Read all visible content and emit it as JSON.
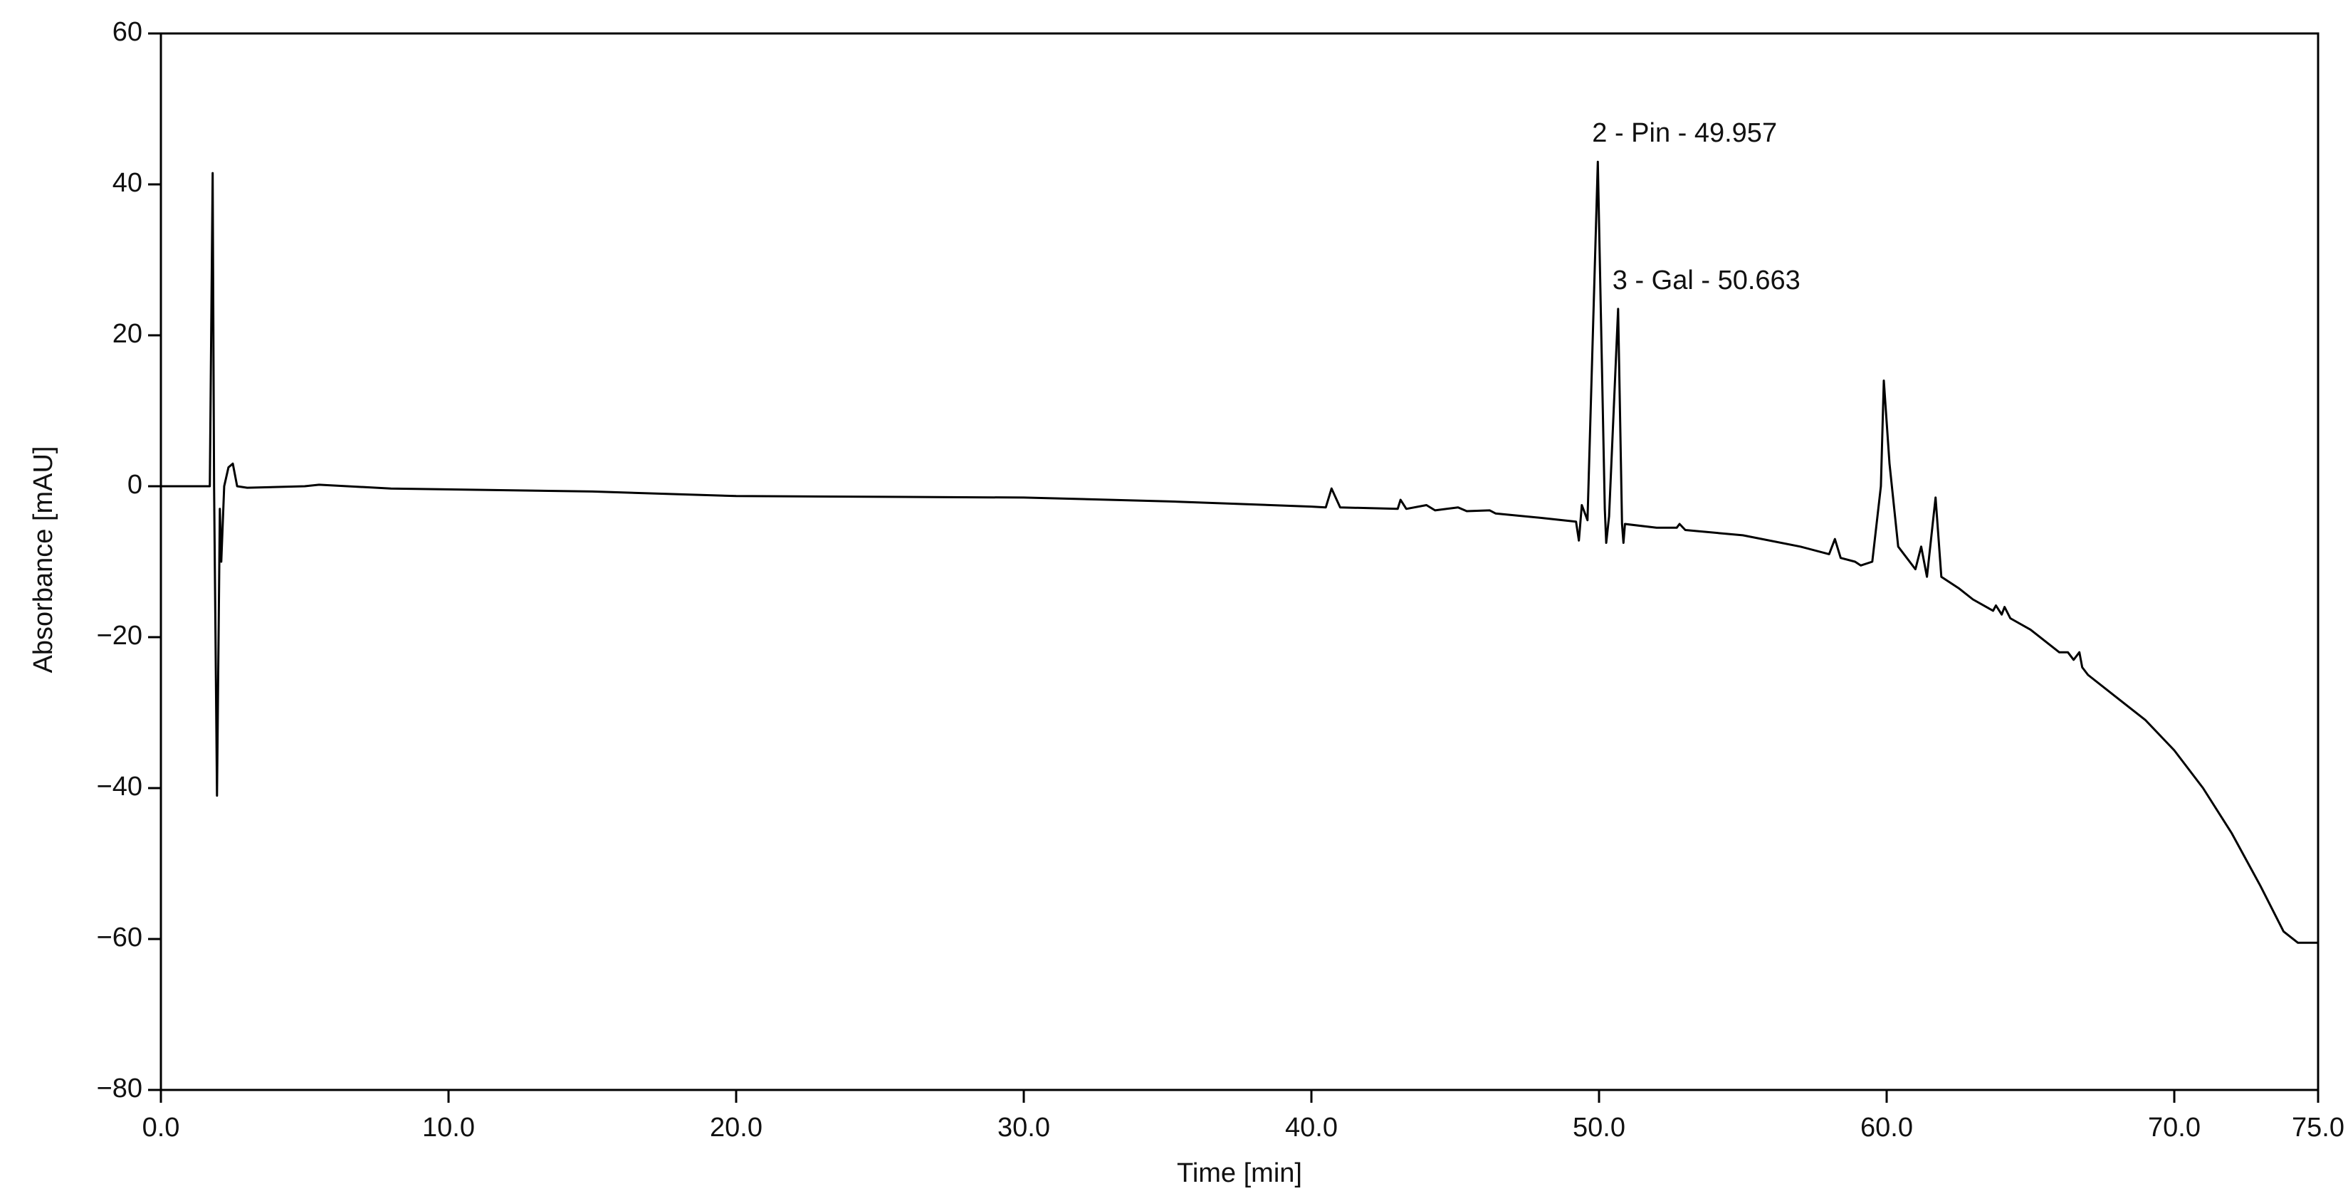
{
  "chart_data": {
    "type": "line",
    "x_label": "Time [min]",
    "y_label": "Absorbance [mAU]",
    "xlim": [
      0,
      75
    ],
    "ylim": [
      -80,
      60
    ],
    "xticks": [
      {
        "value": 0,
        "label": "0.0"
      },
      {
        "value": 10,
        "label": "10.0"
      },
      {
        "value": 20,
        "label": "20.0"
      },
      {
        "value": 30,
        "label": "30.0"
      },
      {
        "value": 40,
        "label": "40.0"
      },
      {
        "value": 50,
        "label": "50.0"
      },
      {
        "value": 60,
        "label": "60.0"
      },
      {
        "value": 70,
        "label": "70.0"
      },
      {
        "value": 75,
        "label": "75.0"
      }
    ],
    "yticks": [
      60,
      40,
      20,
      0,
      {
        "value": -20,
        "label": "−20"
      },
      {
        "value": -40,
        "label": "−40"
      },
      {
        "value": -60,
        "label": "−60"
      },
      {
        "value": -80,
        "label": "−80"
      }
    ],
    "color": "#000000",
    "x": [
      0,
      1.7,
      1.8,
      1.85,
      1.95,
      2.05,
      2.1,
      2.2,
      2.35,
      2.5,
      2.65,
      3,
      5,
      5.5,
      8,
      15,
      20,
      30,
      35,
      40,
      40.5,
      40.7,
      41,
      43,
      43.1,
      43.3,
      44,
      44.3,
      45.1,
      45.4,
      46.2,
      46.4,
      48,
      49.2,
      49.3,
      49.4,
      49.6,
      49.957,
      50.2,
      50.25,
      50.35,
      50.663,
      50.8,
      50.85,
      50.9,
      52,
      52.7,
      52.8,
      53,
      55,
      57,
      58,
      58.2,
      58.4,
      58.9,
      59.1,
      59.5,
      59.8,
      59.9,
      60.1,
      60.4,
      61,
      61.2,
      61.4,
      61.7,
      61.9,
      62.5,
      63,
      63.7,
      63.8,
      64,
      64.1,
      64.3,
      65,
      66,
      66.3,
      66.5,
      66.7,
      66.8,
      67,
      68,
      69,
      70,
      71,
      72,
      73,
      73.8,
      74.3,
      75
    ],
    "values": [
      0,
      0,
      41.5,
      0,
      -41,
      -3,
      -10,
      0,
      2.5,
      3,
      0,
      -0.2,
      0,
      0.2,
      -0.3,
      -0.7,
      -1.3,
      -1.5,
      -2,
      -2.7,
      -2.8,
      -0.3,
      -2.8,
      -3,
      -1.8,
      -3,
      -2.5,
      -3.2,
      -2.8,
      -3.3,
      -3.2,
      -3.6,
      -4.2,
      -4.7,
      -7.2,
      -2.5,
      -4.5,
      43,
      -3,
      -7.5,
      -4,
      23.5,
      -5,
      -7.5,
      -5,
      -5.5,
      -5.5,
      -5,
      -5.8,
      -6.5,
      -8,
      -9,
      -7,
      -9.5,
      -10,
      -10.5,
      -10,
      0,
      14,
      3,
      -8,
      -11,
      -8,
      -12,
      -1.5,
      -12,
      -13.5,
      -15,
      -16.5,
      -15.8,
      -17,
      -16,
      -17.5,
      -19,
      -22,
      -22,
      -23,
      -22,
      -24,
      -25,
      -28,
      -31,
      -35,
      -40,
      -46,
      -53,
      -59,
      -60.5,
      -60.5
    ],
    "annotations": [
      {
        "text": "2  - Pin - 49.957",
        "x": 49.957,
        "y": 43
      },
      {
        "text": "3 - Gal - 50.663",
        "x": 50.663,
        "y": 23.5
      }
    ]
  }
}
